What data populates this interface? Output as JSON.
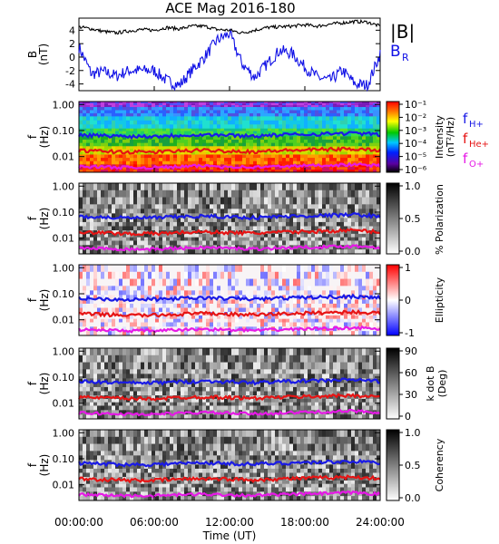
{
  "title": "ACE Mag 2016-180",
  "colors": {
    "B_total": "#000000",
    "B_R": "#1010e6",
    "f_H": "#1a1ae6",
    "f_He": "#e61414",
    "f_O": "#e619e6"
  },
  "x_axis": {
    "label": "Time (UT)",
    "range_hours": [
      0,
      24
    ],
    "ticks": [
      "00:00:00",
      "06:00:00",
      "12:00:00",
      "18:00:00",
      "24:00:00"
    ]
  },
  "freq_axis": {
    "label_line1": "f",
    "label_line2": "(Hz)",
    "ticks": [
      "1.00",
      "0.10",
      "0.01"
    ],
    "scale": "log",
    "range_hz": [
      0.0025,
      1.3
    ]
  },
  "chart_data": [
    {
      "type": "line",
      "panel": "magnetic field",
      "ylabel_line1": "B",
      "ylabel_line2": "(nT)",
      "ylim": [
        -5,
        5.8
      ],
      "yticks": [
        "4",
        "2",
        "0",
        "-2",
        "-4"
      ],
      "legend": [
        "|B|",
        "B",
        "R"
      ],
      "x_hours": [
        0,
        1,
        2,
        3,
        4,
        5,
        6,
        7,
        8,
        9,
        10,
        11,
        12,
        13,
        14,
        15,
        16,
        17,
        18,
        19,
        20,
        21,
        22,
        23,
        24
      ],
      "series": [
        {
          "name": "|B|",
          "values": [
            4.5,
            4.2,
            3.8,
            3.6,
            3.9,
            4.1,
            4.0,
            4.4,
            4.2,
            4.6,
            4.6,
            4.1,
            4.0,
            3.6,
            4.0,
            4.4,
            4.5,
            4.6,
            4.8,
            4.6,
            4.9,
            5.1,
            5.3,
            5.2,
            4.6
          ]
        },
        {
          "name": "B_R",
          "values": [
            1.5,
            -2.5,
            -2.2,
            -2.8,
            -2.0,
            -2.0,
            -2.0,
            -3.5,
            -4.2,
            -2.0,
            0.0,
            2.5,
            3.5,
            -1.0,
            -3.0,
            -1.0,
            1.0,
            0.5,
            -1.5,
            -3.0,
            -3.5,
            -2.0,
            -4.0,
            -4.2,
            0.5
          ]
        }
      ]
    },
    {
      "type": "heatmap",
      "panel": "power spectrum",
      "colorbar_label_line1": "Intensity",
      "colorbar_label_line2": "(nT²/Hz)",
      "colorbar_ticks": [
        "10⁻¹",
        "10⁻²",
        "10⁻³",
        "10⁻⁴",
        "10⁻⁵",
        "10⁻⁶"
      ],
      "legend": [
        {
          "base": "f",
          "sub": "H+",
          "color": "#1a1ae6"
        },
        {
          "base": "f",
          "sub": "He+",
          "color": "#e61414"
        },
        {
          "base": "f",
          "sub": "O+",
          "color": "#e619e6"
        }
      ]
    },
    {
      "type": "heatmap",
      "panel": "polarization",
      "colorbar_label": "% Polarization",
      "colorbar_ticks": [
        "1.0",
        "0.5",
        "0.0"
      ]
    },
    {
      "type": "heatmap",
      "panel": "ellipticity",
      "colorbar_label": "Ellipticity",
      "colorbar_ticks": [
        "1",
        "0",
        "-1"
      ]
    },
    {
      "type": "heatmap",
      "panel": "k dot B",
      "colorbar_label_line1": "k dot B",
      "colorbar_label_line2": "(Deg)",
      "colorbar_ticks": [
        "90",
        "60",
        "30",
        "0"
      ]
    },
    {
      "type": "heatmap",
      "panel": "coherency",
      "colorbar_label": "Coherency",
      "colorbar_ticks": [
        "1.0",
        "0.5",
        "0.0"
      ]
    }
  ],
  "gyrofrequencies_hz": {
    "x_hours": [
      0,
      2,
      4,
      6,
      8,
      10,
      12,
      14,
      16,
      18,
      20,
      22,
      24
    ],
    "f_H": [
      0.068,
      0.064,
      0.06,
      0.061,
      0.066,
      0.07,
      0.066,
      0.062,
      0.068,
      0.072,
      0.076,
      0.08,
      0.07
    ],
    "f_He": [
      0.017,
      0.016,
      0.015,
      0.015,
      0.0165,
      0.0175,
      0.0165,
      0.0155,
      0.017,
      0.018,
      0.019,
      0.02,
      0.0175
    ],
    "f_O": [
      0.0042,
      0.004,
      0.0038,
      0.0038,
      0.0041,
      0.0044,
      0.0041,
      0.0039,
      0.0042,
      0.0045,
      0.0047,
      0.005,
      0.0044
    ]
  }
}
